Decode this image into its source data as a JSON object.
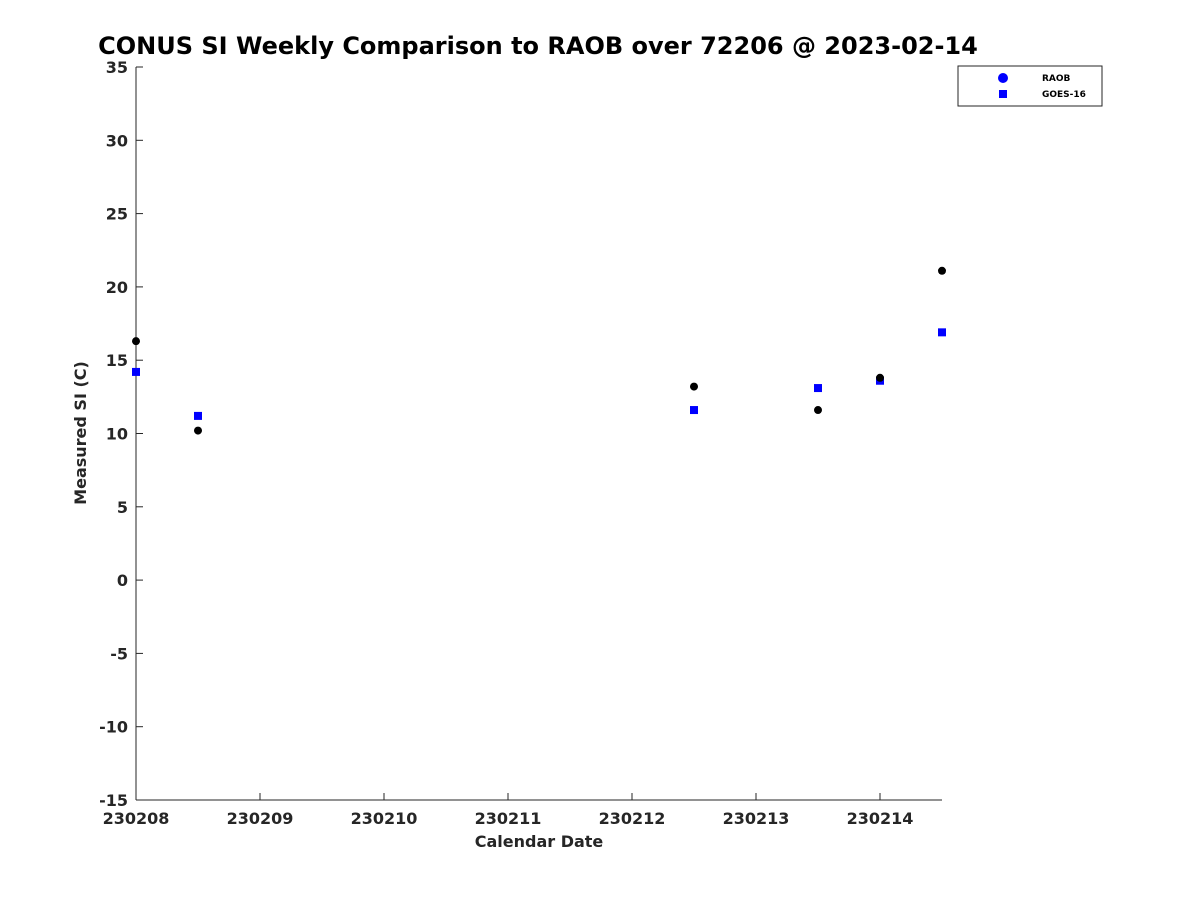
{
  "chart_data": {
    "type": "scatter",
    "title": "CONUS SI Weekly Comparison to RAOB over 72206 @ 2023-02-14",
    "xlabel": "Calendar Date",
    "ylabel": "Measured SI (C)",
    "x_tick_labels": [
      "230208",
      "230209",
      "230210",
      "230211",
      "230212",
      "230213",
      "230214"
    ],
    "xlim": [
      "2023-02-08T00:00",
      "2023-02-14T12:00"
    ],
    "ylim": [
      -15,
      35
    ],
    "y_ticks": [
      -15,
      -10,
      -5,
      0,
      5,
      10,
      15,
      20,
      25,
      30,
      35
    ],
    "grid": false,
    "legend_position": "top-right",
    "series": [
      {
        "name": "RAOB",
        "marker": "circle",
        "legend_color": "#0000ff",
        "color": "#000000",
        "x": [
          "2023-02-08T00:00",
          "2023-02-08T12:00",
          "2023-02-12T12:00",
          "2023-02-13T12:00",
          "2023-02-14T00:00",
          "2023-02-14T12:00"
        ],
        "y": [
          16.3,
          10.2,
          13.2,
          11.6,
          13.8,
          21.1
        ]
      },
      {
        "name": "GOES-16",
        "marker": "square",
        "color": "#0000ff",
        "x": [
          "2023-02-08T00:00",
          "2023-02-08T12:00",
          "2023-02-12T12:00",
          "2023-02-13T12:00",
          "2023-02-14T00:00",
          "2023-02-14T12:00"
        ],
        "y": [
          14.2,
          11.2,
          11.6,
          13.1,
          13.6,
          16.9
        ]
      }
    ]
  }
}
